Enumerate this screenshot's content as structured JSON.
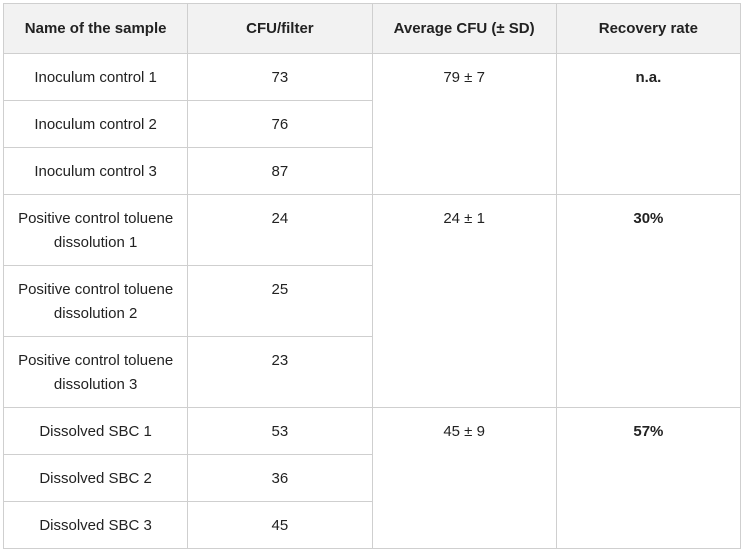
{
  "table": {
    "header": [
      "Name of the sample",
      "CFU/filter",
      "Average CFU (± SD)",
      "Recovery rate"
    ],
    "groups": [
      {
        "rows": [
          [
            "Inoculum control 1",
            73
          ],
          [
            "Inoculum control 2",
            76
          ],
          [
            "Inoculum control 3",
            87
          ]
        ],
        "average": "79 ± 7",
        "recovery": "n.a."
      },
      {
        "rows": [
          [
            "Positive control toluene dissolution 1",
            24
          ],
          [
            "Positive control toluene dissolution 2",
            25
          ],
          [
            "Positive control toluene dissolution 3",
            23
          ]
        ],
        "average": "24 ± 1",
        "recovery": "30%"
      },
      {
        "rows": [
          [
            "Dissolved SBC 1",
            53
          ],
          [
            "Dissolved SBC 2",
            36
          ],
          [
            "Dissolved SBC 3",
            45
          ]
        ],
        "average": "45 ± 9",
        "recovery": "57%"
      }
    ]
  }
}
